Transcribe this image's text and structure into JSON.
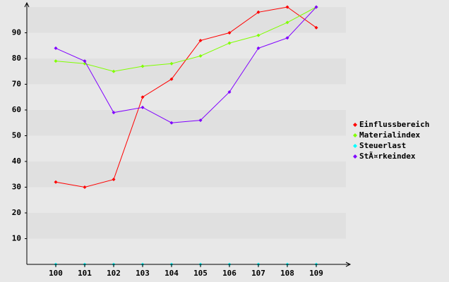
{
  "chart_data": {
    "type": "line",
    "categories": [
      "100",
      "101",
      "102",
      "103",
      "104",
      "105",
      "106",
      "107",
      "108",
      "109"
    ],
    "series": [
      {
        "name": "Einflussbereich",
        "color": "#ff0000",
        "values": [
          32,
          30,
          33,
          65,
          72,
          87,
          90,
          98,
          100,
          92
        ]
      },
      {
        "name": "Materialindex",
        "color": "#80ff00",
        "values": [
          79,
          78,
          75,
          77,
          78,
          81,
          86,
          89,
          94,
          100
        ]
      },
      {
        "name": "Steuerlast",
        "color": "#00ffff",
        "values": [
          0,
          0,
          0,
          0,
          0,
          0,
          0,
          0,
          0,
          0
        ]
      },
      {
        "name": "StÃ¤rkeindex",
        "color": "#8000ff",
        "values": [
          84,
          79,
          59,
          61,
          55,
          56,
          67,
          84,
          88,
          100
        ]
      }
    ],
    "ylim": [
      0,
      100
    ],
    "yticks": [
      10,
      20,
      30,
      40,
      50,
      60,
      70,
      80,
      90
    ],
    "grid": true,
    "legend": "right"
  }
}
